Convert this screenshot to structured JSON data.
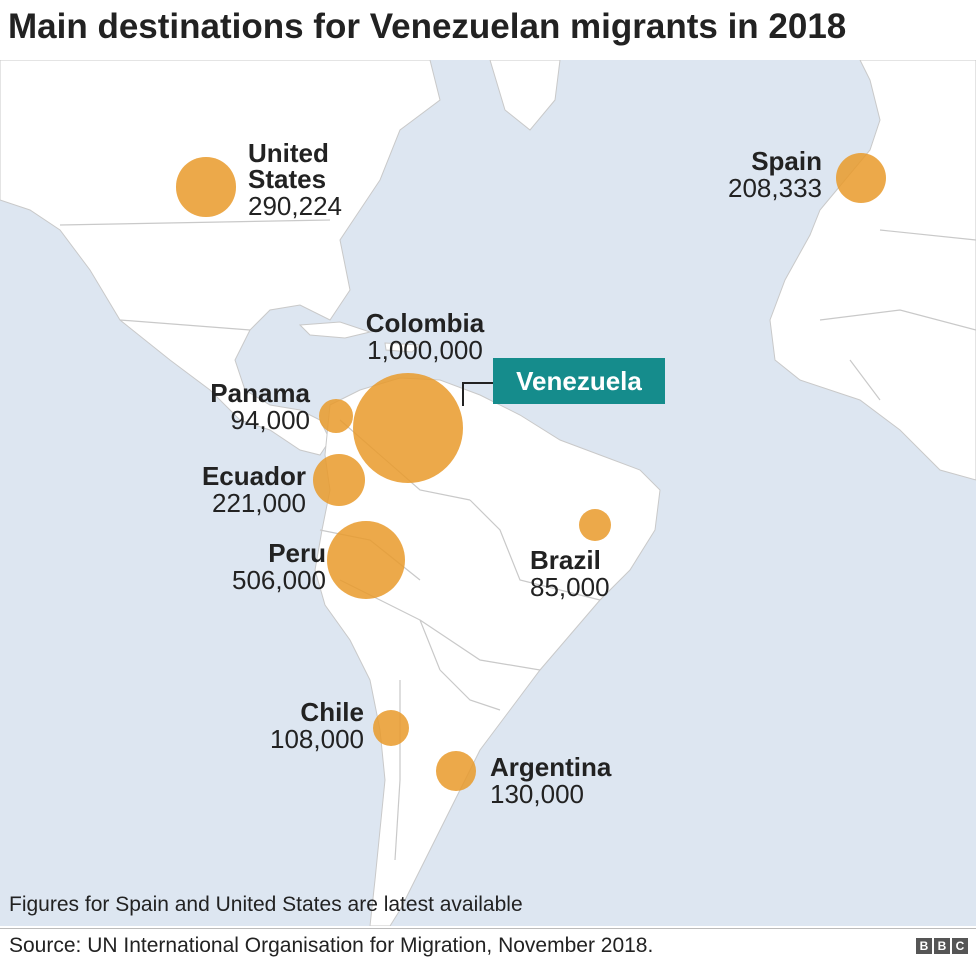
{
  "title": "Main destinations for Venezuelan migrants in 2018",
  "highlight": {
    "label": "Venezuela",
    "color": "#158c8c"
  },
  "destinations": [
    {
      "name": "United States",
      "name_lines": [
        "United",
        "States"
      ],
      "value": "290,224",
      "count": 290224
    },
    {
      "name": "Spain",
      "value": "208,333",
      "count": 208333
    },
    {
      "name": "Colombia",
      "value": "1,000,000",
      "count": 1000000
    },
    {
      "name": "Panama",
      "value": "94,000",
      "count": 94000
    },
    {
      "name": "Ecuador",
      "value": "221,000",
      "count": 221000
    },
    {
      "name": "Peru",
      "value": "506,000",
      "count": 506000
    },
    {
      "name": "Brazil",
      "value": "85,000",
      "count": 85000
    },
    {
      "name": "Chile",
      "value": "108,000",
      "count": 108000
    },
    {
      "name": "Argentina",
      "value": "130,000",
      "count": 130000
    }
  ],
  "colors": {
    "ocean": "#dde6f1",
    "land": "#ffffff",
    "borders": "#c9c9c9",
    "bubble": "#e99a2a"
  },
  "footnote": "Figures for Spain and United States are latest available",
  "source": "Source: UN International Organisation for Migration, November 2018.",
  "logo": [
    "B",
    "B",
    "C"
  ]
}
